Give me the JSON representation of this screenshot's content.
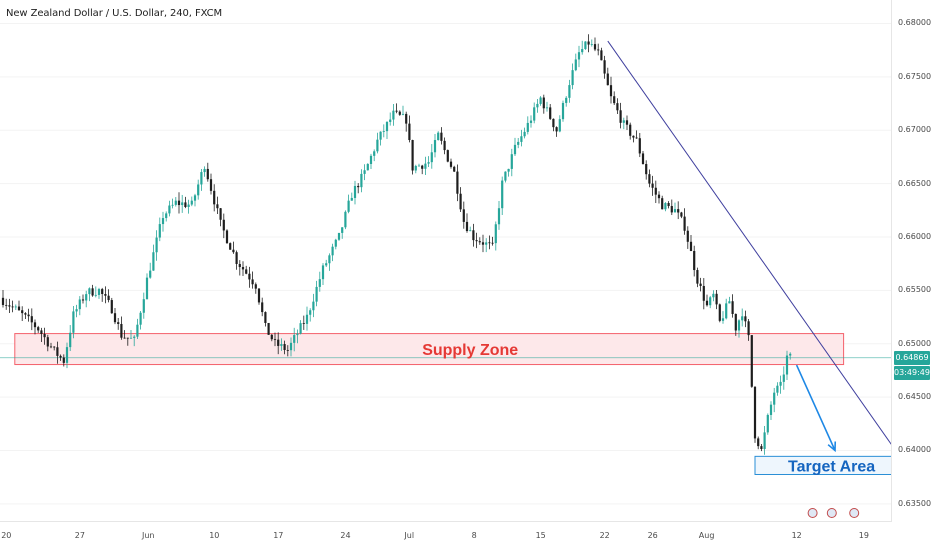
{
  "header": {
    "symbol_title": "New Zealand Dollar / U.S. Dollar, 240, FXCM"
  },
  "colors": {
    "bull": "#26a69a",
    "bear": "#1e1e1e",
    "supply_zone_border": "#f4606b",
    "supply_zone_fill": "#fde8ea",
    "supply_zone_text": "#e53935",
    "trendline": "#3f3f9e",
    "target_area_border": "#2a8fd6",
    "target_area_text": "#1565c0",
    "arrow": "#1e88e5",
    "current_price": "#26a69a",
    "price_line": "#26a69a"
  },
  "chart_data": {
    "type": "candlestick",
    "title": "New Zealand Dollar / U.S. Dollar, 240, FXCM",
    "ylim": [
      0.6333,
      0.6822
    ],
    "y_ticks": [
      "0.68000",
      "0.67500",
      "0.67000",
      "0.66500",
      "0.66000",
      "0.65500",
      "0.65000",
      "0.64500",
      "0.64000",
      "0.63500"
    ],
    "x_ticks": [
      "20",
      "27",
      "Jun",
      "10",
      "17",
      "24",
      "Jul",
      "8",
      "15",
      "22",
      "26",
      "Aug",
      "12",
      "19"
    ],
    "current_price": "0.64869",
    "countdown": "03:49:49",
    "path_keypoints": [
      [
        0,
        0.6543
      ],
      [
        5,
        0.6532
      ],
      [
        9,
        0.6522
      ],
      [
        12,
        0.6514
      ],
      [
        17,
        0.6493
      ],
      [
        20,
        0.6484
      ],
      [
        23,
        0.6527
      ],
      [
        27,
        0.6548
      ],
      [
        31,
        0.655
      ],
      [
        35,
        0.6533
      ],
      [
        38,
        0.6508
      ],
      [
        42,
        0.6503
      ],
      [
        46,
        0.656
      ],
      [
        51,
        0.662
      ],
      [
        55,
        0.6632
      ],
      [
        60,
        0.663
      ],
      [
        64,
        0.6668
      ],
      [
        69,
        0.6612
      ],
      [
        74,
        0.6578
      ],
      [
        80,
        0.6555
      ],
      [
        83,
        0.6515
      ],
      [
        86,
        0.65
      ],
      [
        90,
        0.6494
      ],
      [
        93,
        0.651
      ],
      [
        96,
        0.6525
      ],
      [
        101,
        0.657
      ],
      [
        106,
        0.66
      ],
      [
        110,
        0.664
      ],
      [
        114,
        0.666
      ],
      [
        118,
        0.669
      ],
      [
        123,
        0.6715
      ],
      [
        127,
        0.671
      ],
      [
        129,
        0.6665
      ],
      [
        134,
        0.667
      ],
      [
        137,
        0.6695
      ],
      [
        142,
        0.666
      ],
      [
        145,
        0.6615
      ],
      [
        148,
        0.66
      ],
      [
        151,
        0.6595
      ],
      [
        154,
        0.659
      ],
      [
        157,
        0.665
      ],
      [
        161,
        0.6683
      ],
      [
        165,
        0.6705
      ],
      [
        169,
        0.673
      ],
      [
        174,
        0.67
      ],
      [
        178,
        0.6745
      ],
      [
        181,
        0.6772
      ],
      [
        184,
        0.6782
      ],
      [
        187,
        0.6772
      ],
      [
        191,
        0.673
      ],
      [
        195,
        0.6705
      ],
      [
        199,
        0.669
      ],
      [
        203,
        0.665
      ],
      [
        207,
        0.663
      ],
      [
        211,
        0.6625
      ],
      [
        214,
        0.661
      ],
      [
        218,
        0.656
      ],
      [
        221,
        0.6535
      ],
      [
        223,
        0.6545
      ],
      [
        225,
        0.652
      ],
      [
        228,
        0.654
      ],
      [
        230,
        0.6515
      ],
      [
        232,
        0.653
      ],
      [
        234,
        0.6505
      ],
      [
        236,
        0.6415
      ],
      [
        238,
        0.64
      ],
      [
        240,
        0.643
      ],
      [
        242,
        0.6455
      ],
      [
        244,
        0.646
      ],
      [
        246,
        0.6487
      ]
    ],
    "n_bars": 247,
    "annotations": {
      "supply_zone": {
        "label": "Supply Zone",
        "low": 0.64805,
        "high": 0.65095,
        "from_bar": 4,
        "to_bar": 263
      },
      "target_area": {
        "label": "Target Area",
        "low": 0.63775,
        "high": 0.63945,
        "from_bar": 235,
        "to_bar": 281
      },
      "trendline": {
        "from": [
          189,
          0.67835
        ],
        "to": [
          280,
          0.63955
        ]
      },
      "arrow": {
        "from": [
          248,
          0.648
        ],
        "to": [
          260,
          0.64
        ]
      },
      "price_line": 0.64869
    }
  }
}
